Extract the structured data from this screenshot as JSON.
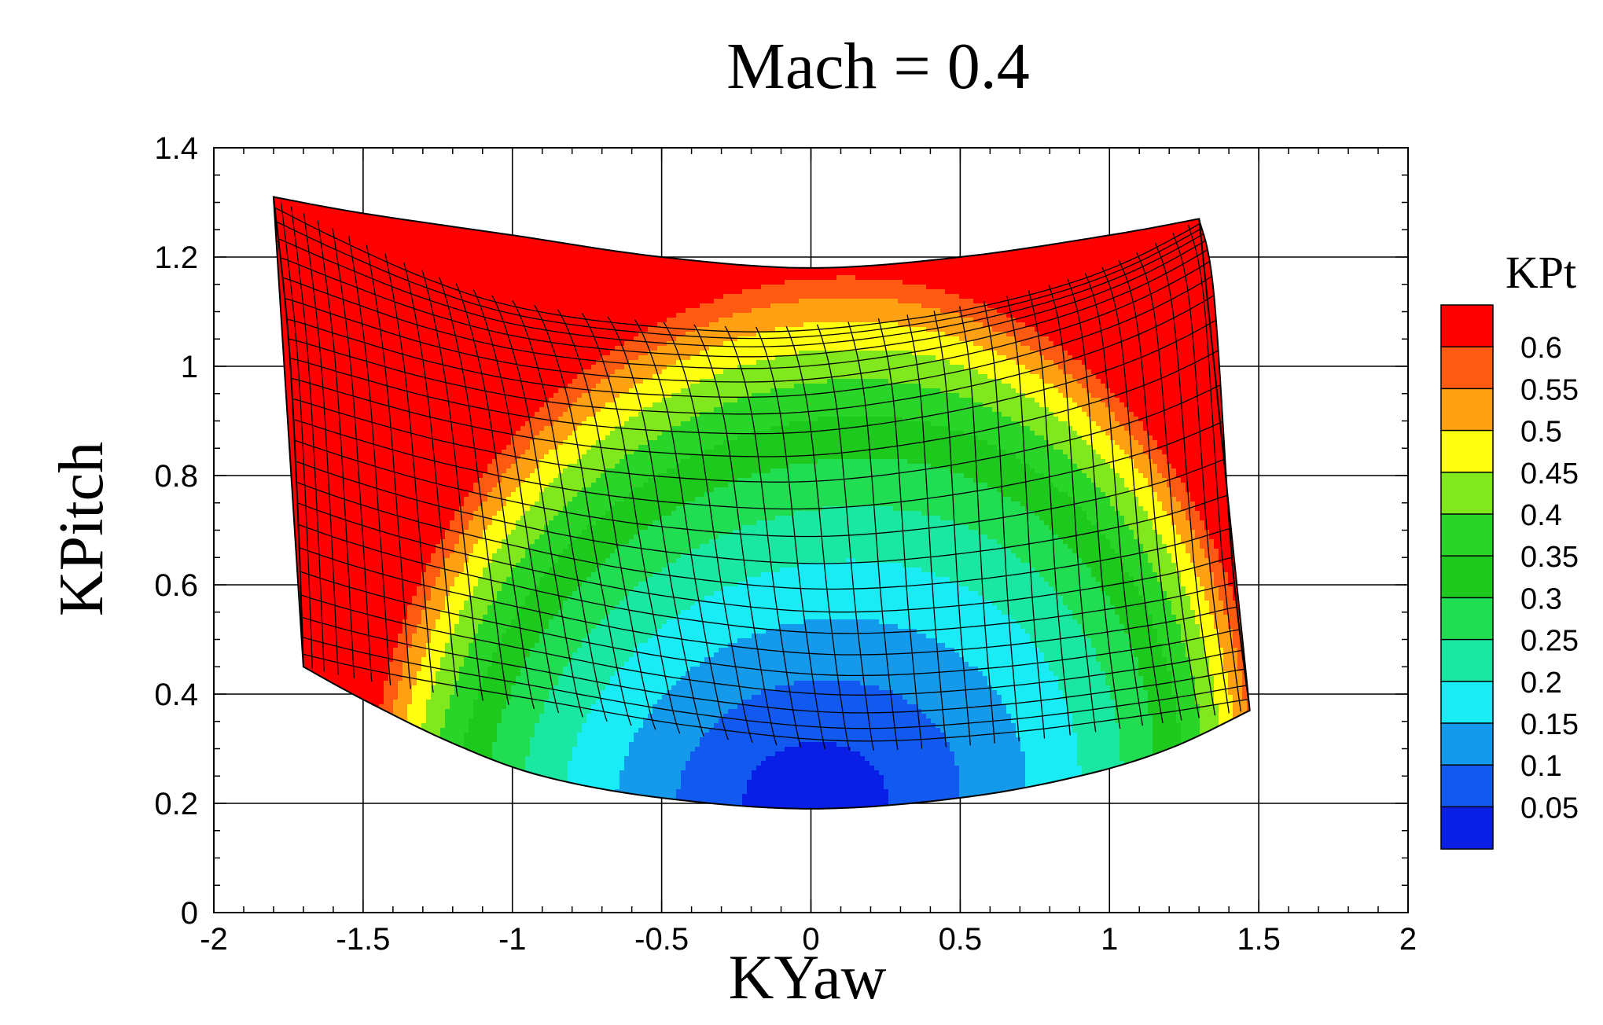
{
  "chart_data": {
    "type": "heatmap",
    "title": "Mach = 0.4",
    "xlabel": "KYaw",
    "ylabel": "KPitch",
    "xlim": [
      -2,
      2
    ],
    "ylim": [
      0,
      1.4
    ],
    "xticks": [
      -2,
      -1.5,
      -1,
      -0.5,
      0,
      0.5,
      1,
      1.5,
      2
    ],
    "xtick_labels": [
      "-2",
      "-1.5",
      "-1",
      "-0.5",
      "0",
      "0.5",
      "1",
      "1.5",
      "2"
    ],
    "yticks": [
      0,
      0.2,
      0.4,
      0.6,
      0.8,
      1,
      1.2,
      1.4
    ],
    "ytick_labels": [
      "0",
      "0.2",
      "0.4",
      "0.6",
      "0.8",
      "1",
      "1.2",
      "1.4"
    ],
    "grid": true,
    "legend_title": "KPt",
    "legend_placement": "right",
    "levels": [
      0.05,
      0.1,
      0.15,
      0.2,
      0.25,
      0.3,
      0.35,
      0.4,
      0.45,
      0.5,
      0.55,
      0.6
    ],
    "level_labels": [
      "0.05",
      "0.1",
      "0.15",
      "0.2",
      "0.25",
      "0.3",
      "0.35",
      "0.4",
      "0.45",
      "0.5",
      "0.55",
      "0.6"
    ],
    "level_colors": [
      "#0a1fe6",
      "#1259f0",
      "#1599ea",
      "#19ecf5",
      "#1ae8a2",
      "#21dd52",
      "#1ec91e",
      "#28d528",
      "#80e81c",
      "#ffff10",
      "#ffa112",
      "#ff5a12",
      "#ff0000"
    ],
    "surface_boundary": {
      "top": [
        [
          -1.8,
          1.31
        ],
        [
          -1.5,
          1.28
        ],
        [
          -1.0,
          1.24
        ],
        [
          -0.5,
          1.2
        ],
        [
          0.0,
          1.18
        ],
        [
          0.5,
          1.2
        ],
        [
          1.0,
          1.24
        ],
        [
          1.3,
          1.27
        ]
      ],
      "right": [
        [
          1.3,
          1.27
        ],
        [
          1.35,
          1.13
        ],
        [
          1.41,
          0.65
        ],
        [
          1.47,
          0.37
        ]
      ],
      "bottom": [
        [
          1.47,
          0.37
        ],
        [
          1.2,
          0.3
        ],
        [
          0.9,
          0.25
        ],
        [
          0.5,
          0.21
        ],
        [
          0.0,
          0.19
        ],
        [
          -0.5,
          0.21
        ],
        [
          -0.9,
          0.25
        ],
        [
          -1.2,
          0.31
        ],
        [
          -1.5,
          0.39
        ],
        [
          -1.7,
          0.45
        ]
      ],
      "left": [
        [
          -1.7,
          0.45
        ],
        [
          -1.72,
          0.75
        ],
        [
          -1.75,
          1.05
        ],
        [
          -1.8,
          1.31
        ]
      ]
    },
    "mesh": {
      "columns": 44,
      "rows": 24
    }
  }
}
